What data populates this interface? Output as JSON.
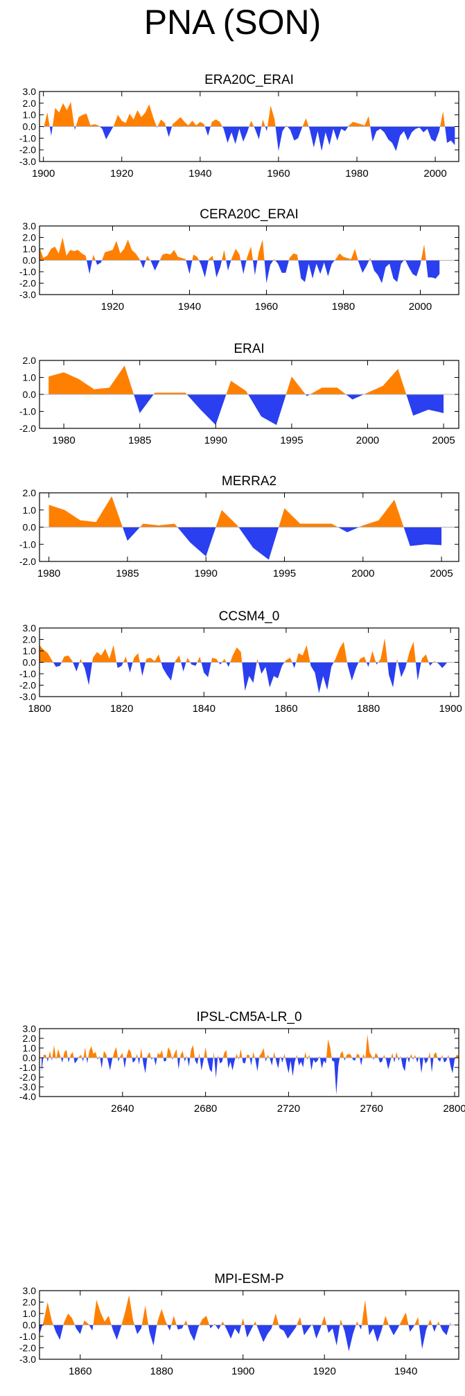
{
  "page": {
    "title": "PNA (SON)"
  },
  "colors": {
    "positive": "#ff8000",
    "negative": "#2a3ff0",
    "axis": "#000000",
    "zero_line": "#b0b0b0"
  },
  "chart_data": [
    {
      "title": "ERA20C_ERAI",
      "type": "area",
      "xlim": [
        1899,
        2006
      ],
      "ylim": [
        -3,
        3
      ],
      "xticks": [
        1900,
        1920,
        1940,
        1960,
        1980,
        2000
      ],
      "yticks": [
        "3.0",
        "2.0",
        "1.0",
        "0.0",
        "-1.0",
        "-2.0",
        "-3.0"
      ],
      "x_start": 1900,
      "values": [
        -0.2,
        1.2,
        -0.8,
        1.6,
        1.2,
        2.0,
        1.4,
        2.1,
        -0.3,
        0.8,
        1.0,
        1.1,
        0.1,
        0.2,
        0.1,
        -0.2,
        -1.1,
        -0.5,
        0.1,
        1.0,
        0.5,
        0.3,
        1.1,
        0.6,
        1.4,
        0.8,
        1.2,
        1.9,
        0.8,
        -0.1,
        0.6,
        0.3,
        -0.9,
        0.2,
        0.5,
        0.8,
        0.4,
        0.1,
        0.5,
        0.1,
        0.4,
        0.2,
        -0.8,
        0.4,
        0.6,
        0.4,
        -0.2,
        -1.4,
        -0.5,
        -1.5,
        -0.2,
        -1.3,
        -0.5,
        0.5,
        -0.2,
        -1.1,
        0.6,
        -0.4,
        1.8,
        0.6,
        -2.1,
        -0.4,
        0.1,
        -0.3,
        -1.2,
        -1.0,
        -0.1,
        0.7,
        -0.3,
        -1.8,
        -0.4,
        -2.1,
        -0.5,
        -1.6,
        -0.2,
        -1.2,
        -0.2,
        -0.4,
        0.1,
        0.4,
        0.3,
        0.2,
        0.1,
        0.9,
        -1.3,
        -0.4,
        -0.2,
        -0.5,
        -1.1,
        -1.4,
        -2.1,
        -0.8,
        -0.4,
        -1.2,
        -0.5,
        -0.2,
        -0.1,
        -0.5,
        -0.2,
        -1.1,
        -1.3,
        -0.4,
        1.3,
        -1.4,
        -1.2,
        -1.6
      ]
    },
    {
      "title": "CERA20C_ERAI",
      "type": "area",
      "xlim": [
        1901,
        2010
      ],
      "ylim": [
        -3,
        3
      ],
      "xticks": [
        1920,
        1940,
        1960,
        1980,
        2000
      ],
      "yticks": [
        "3.0",
        "2.0",
        "1.0",
        "0.0",
        "-1.0",
        "-2.0",
        "-3.0"
      ],
      "x_start": 1901,
      "values": [
        1.1,
        0.2,
        0.4,
        1.0,
        1.2,
        0.6,
        2.0,
        0.4,
        0.9,
        0.8,
        0.9,
        0.6,
        0.4,
        -1.2,
        0.5,
        -0.4,
        -0.2,
        0.7,
        0.8,
        0.9,
        1.7,
        0.6,
        1.0,
        1.8,
        0.9,
        0.6,
        0.1,
        -0.7,
        0.4,
        -0.1,
        -0.9,
        -0.2,
        0.5,
        0.6,
        0.5,
        0.9,
        0.3,
        0.2,
        0.1,
        -1.2,
        0.5,
        0.3,
        -0.4,
        -1.5,
        0.1,
        0.4,
        -1.5,
        -0.6,
        0.9,
        -0.9,
        0.2,
        1.0,
        0.5,
        -1.2,
        0.3,
        1.2,
        -1.3,
        0.7,
        1.8,
        -2.0,
        -0.4,
        0.1,
        -0.3,
        -1.1,
        -1.1,
        0.2,
        0.6,
        0.5,
        -1.6,
        -1.9,
        -0.3,
        -1.6,
        -0.3,
        -1.2,
        -0.2,
        -1.4,
        -0.3,
        0.1,
        0.6,
        0.3,
        0.2,
        0.1,
        1.0,
        -0.2,
        -1.1,
        -0.5,
        0.2,
        -0.9,
        -1.3,
        -2.0,
        -0.6,
        -0.3,
        -1.6,
        -1.9,
        -0.3,
        0.1,
        -0.6,
        -1.2,
        -1.4,
        -0.4,
        1.4,
        -1.5,
        -1.5,
        -1.6,
        -1.2
      ]
    },
    {
      "title": "ERAI",
      "type": "area",
      "xlim": [
        1978.4,
        2006
      ],
      "ylim": [
        -2,
        2
      ],
      "xticks": [
        1980,
        1985,
        1990,
        1995,
        2000,
        2005
      ],
      "yticks": [
        "2.0",
        "1.0",
        "0.0",
        "-1.0",
        "-2.0"
      ],
      "x_start": 1979,
      "values": [
        1.05,
        1.3,
        0.9,
        0.3,
        0.4,
        1.7,
        -1.1,
        0.1,
        0.1,
        0.1,
        -0.9,
        -1.8,
        0.8,
        0.2,
        -1.3,
        -1.8,
        1.05,
        -0.1,
        0.4,
        0.4,
        -0.3,
        0.1,
        0.5,
        1.5,
        -1.25,
        -0.9,
        -1.1
      ]
    },
    {
      "title": "MERRA2",
      "type": "area",
      "xlim": [
        1979.4,
        2006.1
      ],
      "ylim": [
        -2,
        2
      ],
      "xticks": [
        1980,
        1985,
        1990,
        1995,
        2000,
        2005
      ],
      "yticks": [
        "2.0",
        "1.0",
        "0.0",
        "-1.0",
        "-2.0"
      ],
      "x_start": 1980,
      "values": [
        1.3,
        1.0,
        0.4,
        0.3,
        1.8,
        -0.8,
        0.2,
        0.1,
        0.2,
        -0.9,
        -1.7,
        1.0,
        0.1,
        -1.2,
        -1.9,
        1.1,
        0.2,
        0.2,
        0.2,
        -0.3,
        0.1,
        0.4,
        1.6,
        -1.1,
        -1.0,
        -1.05
      ]
    },
    {
      "title": "CCSM4_0",
      "type": "area",
      "xlim": [
        1800,
        1902
      ],
      "ylim": [
        -3,
        3
      ],
      "xticks": [
        1800,
        1820,
        1840,
        1860,
        1880,
        1900
      ],
      "yticks": [
        "3.0",
        "2.0",
        "1.0",
        "0.0",
        "-1.0",
        "-2.0",
        "-3.0"
      ],
      "x_start": 1800,
      "values": [
        1.5,
        1.1,
        0.8,
        0.2,
        -0.4,
        -0.3,
        0.5,
        0.6,
        0.1,
        -0.8,
        0.3,
        -0.5,
        -2.0,
        0.4,
        0.9,
        0.6,
        1.2,
        0.3,
        1.5,
        -0.5,
        -0.3,
        0.5,
        -0.9,
        0.4,
        0.8,
        -1.2,
        0.3,
        0.4,
        0.1,
        0.7,
        -0.5,
        -1.1,
        -1.6,
        0.1,
        0.6,
        -0.8,
        0.4,
        -0.2,
        -0.3,
        0.5,
        -0.9,
        -1.3,
        0.4,
        0.3,
        -0.2,
        0.3,
        -0.4,
        0.6,
        1.3,
        0.9,
        -2.5,
        -1.2,
        -1.8,
        0.3,
        -1.0,
        -0.4,
        -2.2,
        -1.2,
        -1.4,
        -0.3,
        0.2,
        0.4,
        -0.5,
        0.8,
        0.6,
        1.5,
        -0.3,
        -0.9,
        -2.7,
        -1.2,
        -2.4,
        -0.4,
        0.3,
        1.2,
        1.8,
        -0.3,
        -1.6,
        -0.5,
        0.3,
        0.5,
        -0.4,
        1.0,
        -0.2,
        0.3,
        2.1,
        -1.1,
        -2.2,
        0.3,
        -1.3,
        -0.5,
        0.9,
        1.8,
        -1.6,
        0.3,
        0.7,
        -0.3,
        0.1,
        -0.1,
        -0.5,
        -0.1
      ]
    },
    {
      "title": "IPSL-CM5A-LR_0",
      "type": "area",
      "xlim": [
        2600,
        2802
      ],
      "ylim": [
        -4,
        3
      ],
      "xticks": [
        2640,
        2680,
        2720,
        2760,
        2800
      ],
      "yticks": [
        "3.0",
        "2.0",
        "1.0",
        "0.0",
        "-1.0",
        "-2.0",
        "-3.0",
        "-4.0"
      ],
      "x_start": 2601,
      "values": [
        -1.4,
        0.3,
        0.3,
        -0.4,
        0.7,
        -0.3,
        1.3,
        -0.2,
        0.9,
        0.2,
        -0.5,
        0.6,
        0.8,
        -0.5,
        0.3,
        0.6,
        -0.6,
        -0.3,
        0.1,
        0.3,
        -0.4,
        1.1,
        -0.6,
        0.7,
        1.2,
        0.4,
        0.6,
        -0.2,
        0.2,
        -1.1,
        0.7,
        0.4,
        -0.3,
        -1.3,
        -0.2,
        0.6,
        1.1,
        -0.4,
        0.2,
        0.5,
        -1.1,
        0.2,
        0.9,
        0.6,
        -0.5,
        -0.3,
        0.4,
        -0.7,
        1.0,
        -0.6,
        -1.6,
        0.2,
        0.6,
        -0.2,
        0.1,
        -0.8,
        0.5,
        0.3,
        0.8,
        -0.4,
        -0.3,
        1.1,
        0.7,
        -0.2,
        0.4,
        0.9,
        -1.2,
        0.3,
        0.7,
        -0.4,
        0.2,
        -0.9,
        0.8,
        1.3,
        -0.3,
        -0.7,
        0.5,
        -1.3,
        -0.3,
        1.1,
        -0.3,
        -1.2,
        -1.5,
        0.6,
        -2.1,
        0.3,
        -0.6,
        -0.4,
        0.5,
        0.8,
        -1.1,
        -0.4,
        -1.3,
        -0.3,
        0.4,
        -0.2,
        0.9,
        -0.5,
        -0.6,
        0.3,
        0.3,
        -0.8,
        0.6,
        -0.2,
        -1.4,
        0.2,
        0.5,
        1.0,
        -0.4,
        0.3,
        -0.1,
        -0.8,
        0.6,
        -0.3,
        -1.1,
        0.2,
        -0.5,
        0.4,
        -0.6,
        -1.6,
        -0.3,
        -1.9,
        -0.4,
        0.3,
        -0.8,
        -0.4,
        -1.0,
        0.6,
        -0.2,
        0.3,
        -1.3,
        -0.2,
        -0.5,
        -0.3,
        0.2,
        -1.1,
        -0.3,
        -0.6,
        1.9,
        1.1,
        -0.3,
        -0.4,
        -3.8,
        -0.8,
        0.4,
        0.7,
        -0.3,
        0.3,
        0.4,
        0.3,
        -0.2,
        -0.3,
        0.4,
        0.3,
        -0.8,
        0.4,
        -0.1,
        2.4,
        0.6,
        0.2,
        -0.2,
        0.5,
        0.2,
        -0.5,
        -0.4,
        0.3,
        -0.2,
        -1.2,
        -0.4,
        0.5,
        -0.5,
        0.6,
        -0.3,
        0.2,
        -0.9,
        -1.4,
        0.2,
        -0.5,
        0.4,
        -0.2,
        0.3,
        -0.5,
        0.2,
        -1.6,
        0.1,
        -0.6,
        -0.3,
        0.6,
        -1.5,
        0.3,
        0.6,
        -0.2,
        -0.4,
        0.3,
        -0.5,
        -0.3,
        0.3,
        -0.8,
        -1.6,
        -0.2,
        0.3,
        0.2
      ]
    },
    {
      "title": "MPI-ESM-P",
      "type": "area",
      "xlim": [
        1850,
        1953
      ],
      "ylim": [
        -3,
        3
      ],
      "xticks": [
        1860,
        1880,
        1900,
        1920,
        1940
      ],
      "yticks": [
        "3.0",
        "2.0",
        "1.0",
        "0.0",
        "-1.0",
        "-2.0",
        "-3.0"
      ],
      "x_start": 1850,
      "values": [
        -0.8,
        0.3,
        2.0,
        0.4,
        -0.6,
        -1.3,
        0.2,
        1.0,
        0.6,
        -0.3,
        -0.8,
        0.4,
        0.1,
        -0.5,
        2.2,
        1.1,
        0.3,
        0.8,
        -0.4,
        -1.3,
        -0.2,
        1.1,
        2.6,
        0.4,
        -0.8,
        -0.3,
        1.7,
        -0.6,
        -1.8,
        0.3,
        1.4,
        0.3,
        -0.5,
        0.8,
        -0.4,
        -0.3,
        0.4,
        -0.7,
        -1.4,
        -0.2,
        0.5,
        0.8,
        -0.3,
        0.1,
        -0.4,
        0.3,
        -0.4,
        -1.2,
        -0.3,
        -0.8,
        0.6,
        -1.1,
        -0.4,
        0.3,
        -0.6,
        -1.5,
        -0.8,
        -0.3,
        1.0,
        -0.3,
        -0.5,
        -1.2,
        -0.7,
        -0.2,
        0.7,
        -0.9,
        -0.4,
        0.1,
        -1.2,
        -0.3,
        0.8,
        -0.7,
        -0.3,
        -1.8,
        0.5,
        -0.6,
        -2.3,
        -0.8,
        0.3,
        -0.4,
        2.2,
        -0.9,
        -0.3,
        -1.5,
        -0.5,
        0.8,
        -0.2,
        -0.9,
        -0.3,
        0.4,
        1.1,
        -0.6,
        -0.1,
        0.7,
        -2.1,
        -0.4,
        0.5,
        -0.6,
        0.3,
        -0.5,
        -0.9,
        0.3
      ]
    }
  ]
}
